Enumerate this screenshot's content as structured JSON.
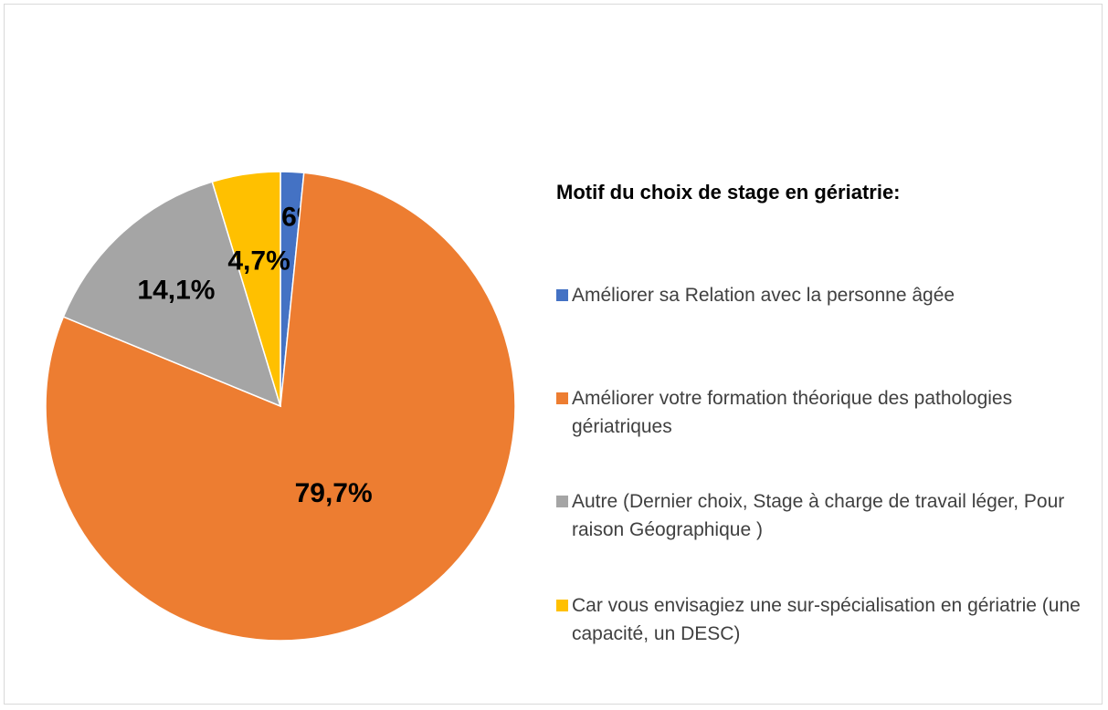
{
  "chart_data": {
    "type": "pie",
    "title": "Motif du choix de stage en gériatrie:",
    "categories": [
      "Améliorer sa Relation avec la personne âgée",
      "Améliorer votre formation théorique des pathologies gériatriques",
      "Autre (Dernier choix, Stage à charge de travail léger, Pour raison Géographique )",
      "Car vous envisagiez une sur-spécialisation en gériatrie (une capacité, un DESC)"
    ],
    "values": [
      1.6,
      79.7,
      14.1,
      4.7
    ],
    "value_labels": [
      "1,6%",
      "79,7%",
      "14,1%",
      "4,7%"
    ],
    "colors": [
      "#4472c4",
      "#ed7d31",
      "#a5a5a5",
      "#ffc000"
    ]
  }
}
